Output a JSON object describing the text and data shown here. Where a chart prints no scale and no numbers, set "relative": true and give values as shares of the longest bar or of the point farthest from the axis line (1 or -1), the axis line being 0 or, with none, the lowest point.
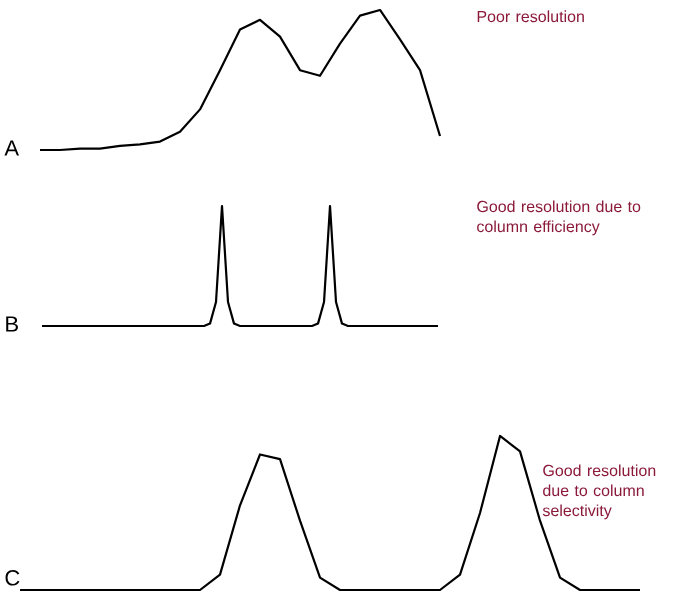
{
  "chart_data": [
    {
      "type": "line",
      "relative": true,
      "annotations": [
        "A",
        "Poor resolution"
      ],
      "categories": [
        null,
        null,
        null,
        null,
        null,
        null,
        null,
        null,
        null,
        null,
        null,
        null,
        null,
        null,
        null,
        null,
        null,
        null,
        null,
        null,
        null
      ],
      "series": [
        {
          "color": "#000000",
          "values": [
            0,
            0,
            0.01,
            0.01,
            0.03,
            0.04,
            0.06,
            0.13,
            0.29,
            0.57,
            0.86,
            0.93,
            0.81,
            0.57,
            0.53,
            0.76,
            0.96,
            1,
            0.79,
            0.57,
            0.1
          ]
        }
      ]
    },
    {
      "type": "line",
      "relative": true,
      "annotations": [
        "B",
        "Good resolution due to column efficiency"
      ],
      "categories": [
        null,
        null,
        null,
        null,
        null,
        null,
        null,
        null,
        null,
        null,
        null,
        null,
        null,
        null,
        null,
        null,
        null,
        null,
        null,
        null,
        null,
        null,
        null,
        null,
        null,
        null,
        null,
        null,
        null,
        null,
        null,
        null,
        null,
        null,
        null,
        null,
        null,
        null,
        null,
        null,
        null,
        null,
        null,
        null,
        null,
        null,
        null,
        null,
        null,
        null,
        null,
        null,
        null,
        null,
        null,
        null,
        null,
        null,
        null,
        null,
        null,
        null,
        null,
        null,
        null,
        null,
        null
      ],
      "series": [
        {
          "color": "#000000",
          "values": [
            0,
            0,
            0,
            0,
            0,
            0,
            0,
            0,
            0,
            0,
            0,
            0,
            0,
            0,
            0,
            0,
            0,
            0,
            0,
            0,
            0,
            0,
            0,
            0,
            0,
            0,
            0,
            0,
            0.02,
            0.2,
            1,
            0.2,
            0.02,
            0,
            0,
            0,
            0,
            0,
            0,
            0,
            0,
            0,
            0,
            0,
            0,
            0,
            0.02,
            0.2,
            1,
            0.2,
            0.02,
            0,
            0,
            0,
            0,
            0,
            0,
            0,
            0,
            0,
            0,
            0,
            0,
            0,
            0,
            0,
            0
          ]
        }
      ]
    },
    {
      "type": "line",
      "relative": true,
      "annotations": [
        "C",
        "Good resolution due to column selectivity"
      ],
      "categories": [
        null,
        null,
        null,
        null,
        null,
        null,
        null,
        null,
        null,
        null,
        null,
        null,
        null,
        null,
        null,
        null,
        null,
        null,
        null,
        null,
        null,
        null,
        null,
        null,
        null,
        null,
        null,
        null,
        null,
        null,
        null,
        null
      ],
      "series": [
        {
          "color": "#000000",
          "values": [
            0,
            0,
            0,
            0,
            0,
            0,
            0,
            0,
            0,
            0,
            0.1,
            0.55,
            0.88,
            0.85,
            0.45,
            0.08,
            0,
            0,
            0,
            0,
            0,
            0,
            0.1,
            0.5,
            1,
            0.9,
            0.45,
            0.08,
            0,
            0,
            0,
            0
          ]
        }
      ]
    }
  ]
}
